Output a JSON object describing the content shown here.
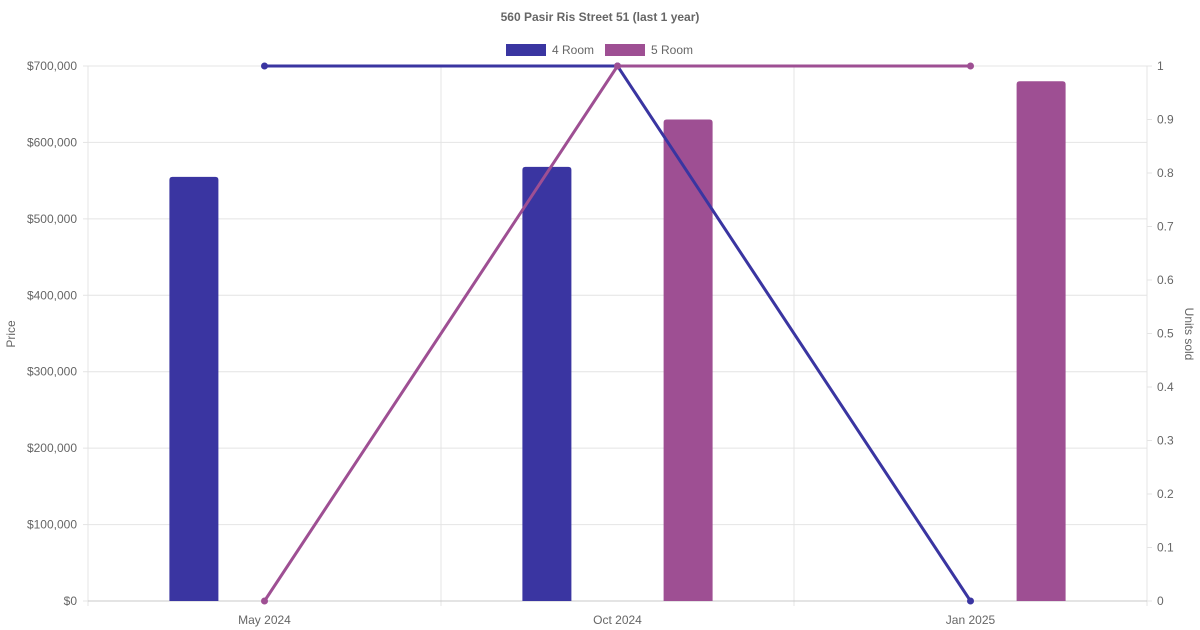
{
  "chart_data": {
    "type": "bar",
    "title": "560 Pasir Ris Street 51 (last 1 year)",
    "categories": [
      "May 2024",
      "Oct 2024",
      "Jan 2025"
    ],
    "ylabel": "Price",
    "y2label": "Units sold",
    "ylim": [
      0,
      700000
    ],
    "y2lim": [
      0,
      1
    ],
    "y_ticks": [
      "$0",
      "$100,000",
      "$200,000",
      "$300,000",
      "$400,000",
      "$500,000",
      "$600,000",
      "$700,000"
    ],
    "y2_ticks": [
      "0",
      "0.1",
      "0.2",
      "0.3",
      "0.4",
      "0.5",
      "0.6",
      "0.7",
      "0.8",
      "0.9",
      "1"
    ],
    "legend_position": "top-center",
    "grid": true,
    "series": [
      {
        "name": "4 Room",
        "color": "#3a35a1",
        "price": [
          555000,
          568000,
          null
        ],
        "units": [
          1,
          1,
          0
        ]
      },
      {
        "name": "5 Room",
        "color": "#9e4f93",
        "price": [
          null,
          630000,
          680000
        ],
        "units": [
          0,
          1,
          1
        ]
      }
    ]
  }
}
